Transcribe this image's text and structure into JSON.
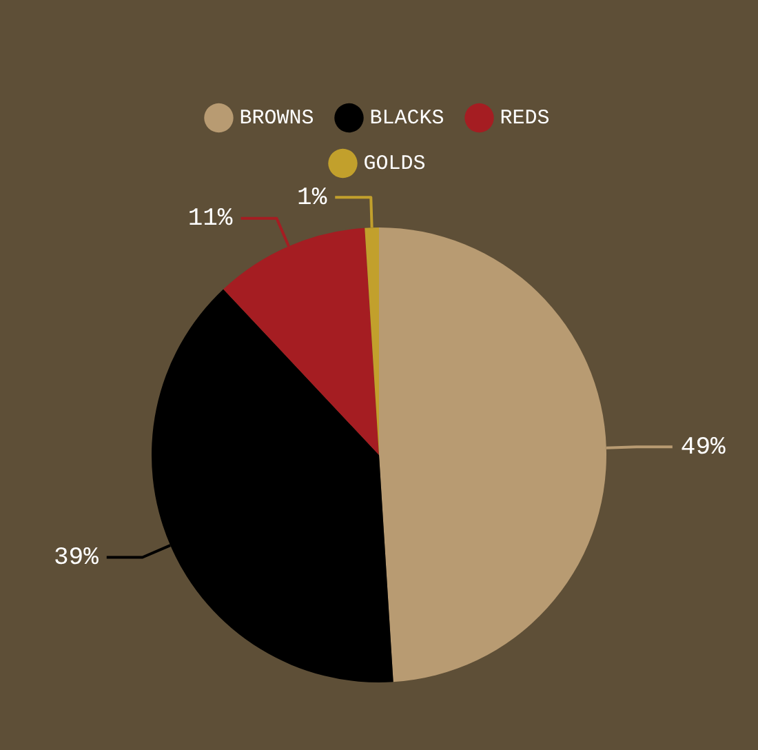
{
  "chart_data": {
    "type": "pie",
    "categories": [
      "BROWNS",
      "BLACKS",
      "REDS",
      "GOLDS"
    ],
    "values": [
      49,
      39,
      11,
      1
    ],
    "colors": [
      "#b89b72",
      "#000000",
      "#a51d22",
      "#c2a02c"
    ],
    "value_labels": [
      "49%",
      "39%",
      "11%",
      "1%"
    ],
    "legend": "top"
  }
}
